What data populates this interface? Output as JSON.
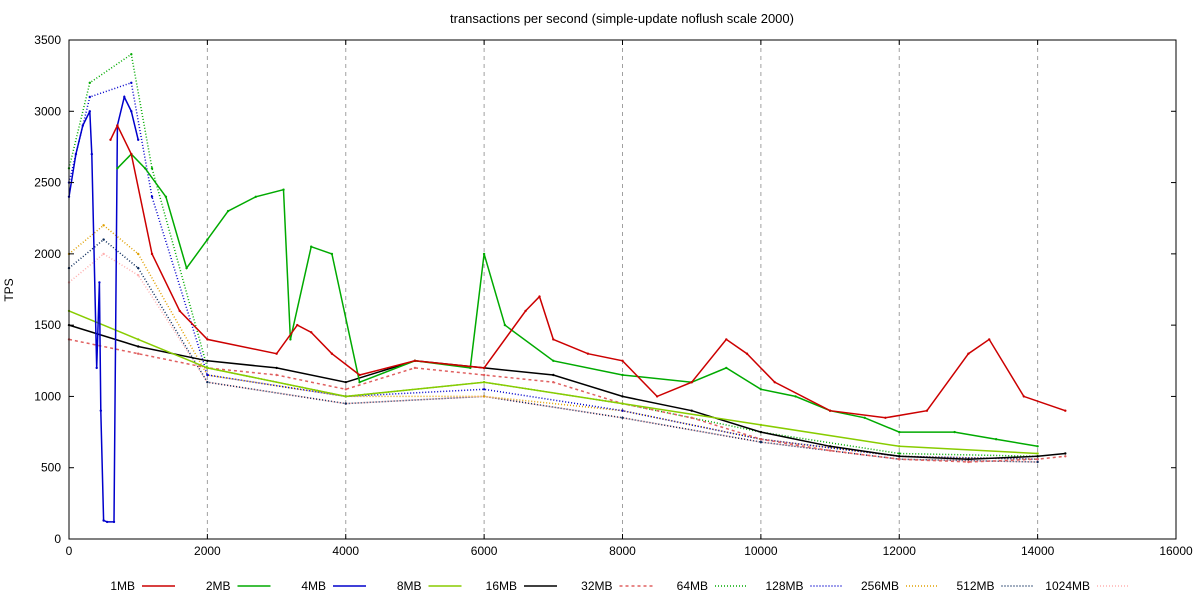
{
  "chart_data": {
    "type": "line",
    "title": "transactions per second (simple-update noflush scale 2000)",
    "xlabel": "",
    "ylabel": "TPS",
    "xlim": [
      0,
      16000
    ],
    "ylim": [
      0,
      3500
    ],
    "x_ticks": [
      0,
      2000,
      4000,
      6000,
      8000,
      10000,
      12000,
      14000,
      16000
    ],
    "y_ticks": [
      0,
      500,
      1000,
      1500,
      2000,
      2500,
      3000,
      3500
    ],
    "grid": "vertical dashed",
    "legend_position": "bottom",
    "series": [
      {
        "name": "1MB",
        "color": "#cc0000",
        "style": "solid",
        "x": [
          600,
          700,
          900,
          1200,
          1600,
          2000,
          3000,
          3300,
          3500,
          3800,
          4200,
          5000,
          6000,
          6600,
          6800,
          7000,
          7500,
          8000,
          8500,
          9000,
          9500,
          9800,
          10200,
          11000,
          11800,
          12400,
          13000,
          13300,
          13800,
          14400
        ],
        "y": [
          2800,
          2900,
          2700,
          2000,
          1600,
          1400,
          1300,
          1500,
          1450,
          1300,
          1150,
          1250,
          1200,
          1600,
          1700,
          1400,
          1300,
          1250,
          1000,
          1100,
          1400,
          1300,
          1100,
          900,
          850,
          900,
          1300,
          1400,
          1000,
          900
        ]
      },
      {
        "name": "2MB",
        "color": "#00aa00",
        "style": "solid",
        "x": [
          700,
          900,
          1100,
          1400,
          1700,
          2000,
          2300,
          2700,
          3100,
          3200,
          3500,
          3800,
          4200,
          5000,
          5800,
          6000,
          6300,
          7000,
          8000,
          9000,
          9500,
          10000,
          10500,
          11000,
          11500,
          12000,
          12800,
          13400,
          14000
        ],
        "y": [
          2600,
          2700,
          2600,
          2400,
          1900,
          2100,
          2300,
          2400,
          2450,
          1400,
          2050,
          2000,
          1100,
          1250,
          1200,
          2000,
          1500,
          1250,
          1150,
          1100,
          1200,
          1050,
          1000,
          900,
          850,
          750,
          750,
          700,
          650
        ]
      },
      {
        "name": "4MB",
        "color": "#0000cc",
        "style": "solid",
        "x": [
          0,
          100,
          200,
          300,
          330,
          400,
          440,
          460,
          500,
          550,
          650,
          700,
          800,
          900,
          1000
        ],
        "y": [
          2400,
          2700,
          2900,
          3000,
          2700,
          1200,
          1800,
          900,
          130,
          120,
          120,
          2900,
          3100,
          3000,
          2800
        ]
      },
      {
        "name": "8MB",
        "color": "#88cc00",
        "style": "solid",
        "x": [
          0,
          1000,
          2000,
          4000,
          6000,
          8000,
          10000,
          12000,
          14000
        ],
        "y": [
          1600,
          1400,
          1200,
          1000,
          1100,
          950,
          800,
          650,
          600
        ]
      },
      {
        "name": "16MB",
        "color": "#000000",
        "style": "solid",
        "x": [
          0,
          1000,
          2000,
          3000,
          4000,
          5000,
          6000,
          7000,
          8000,
          9000,
          10000,
          11000,
          12000,
          13000,
          14000,
          14400
        ],
        "y": [
          1500,
          1350,
          1250,
          1200,
          1100,
          1250,
          1200,
          1150,
          1000,
          900,
          750,
          650,
          580,
          560,
          580,
          600
        ]
      },
      {
        "name": "32MB",
        "color": "#e06060",
        "style": "dashed",
        "x": [
          0,
          1000,
          2000,
          3000,
          4000,
          5000,
          6000,
          7000,
          8000,
          9000,
          10000,
          11000,
          12000,
          13000,
          14000,
          14400
        ],
        "y": [
          1400,
          1300,
          1200,
          1150,
          1050,
          1200,
          1150,
          1100,
          950,
          850,
          700,
          620,
          560,
          540,
          560,
          580
        ]
      },
      {
        "name": "64MB",
        "color": "#00aa00",
        "style": "dotted",
        "x": [
          0,
          300,
          900,
          1200,
          2000,
          4000,
          6000,
          8000,
          10000,
          12000,
          14000
        ],
        "y": [
          2600,
          3200,
          3400,
          2600,
          1200,
          1000,
          1100,
          950,
          750,
          600,
          580
        ]
      },
      {
        "name": "128MB",
        "color": "#0000cc",
        "style": "dotted",
        "x": [
          0,
          300,
          900,
          1200,
          2000,
          4000,
          6000,
          8000,
          10000,
          12000,
          14000
        ],
        "y": [
          2500,
          3100,
          3200,
          2400,
          1150,
          1000,
          1050,
          900,
          700,
          580,
          560
        ]
      },
      {
        "name": "256MB",
        "color": "#e0a000",
        "style": "dotted",
        "x": [
          0,
          500,
          1000,
          2000,
          4000,
          6000,
          8000,
          10000,
          12000,
          14000
        ],
        "y": [
          2000,
          2200,
          2000,
          1150,
          1000,
          1000,
          900,
          700,
          580,
          560
        ]
      },
      {
        "name": "512MB",
        "color": "#0a2a5a",
        "style": "dotted",
        "x": [
          0,
          500,
          1000,
          2000,
          4000,
          6000,
          8000,
          10000,
          12000,
          14000
        ],
        "y": [
          1900,
          2100,
          1900,
          1100,
          950,
          1000,
          850,
          680,
          560,
          540
        ]
      },
      {
        "name": "1024MB",
        "color": "#ffb0b0",
        "style": "dotted",
        "x": [
          0,
          500,
          1000,
          2000,
          4000,
          6000,
          8000,
          10000,
          12000,
          14000
        ],
        "y": [
          1800,
          2000,
          1850,
          1100,
          950,
          1000,
          850,
          680,
          560,
          540
        ]
      }
    ]
  }
}
